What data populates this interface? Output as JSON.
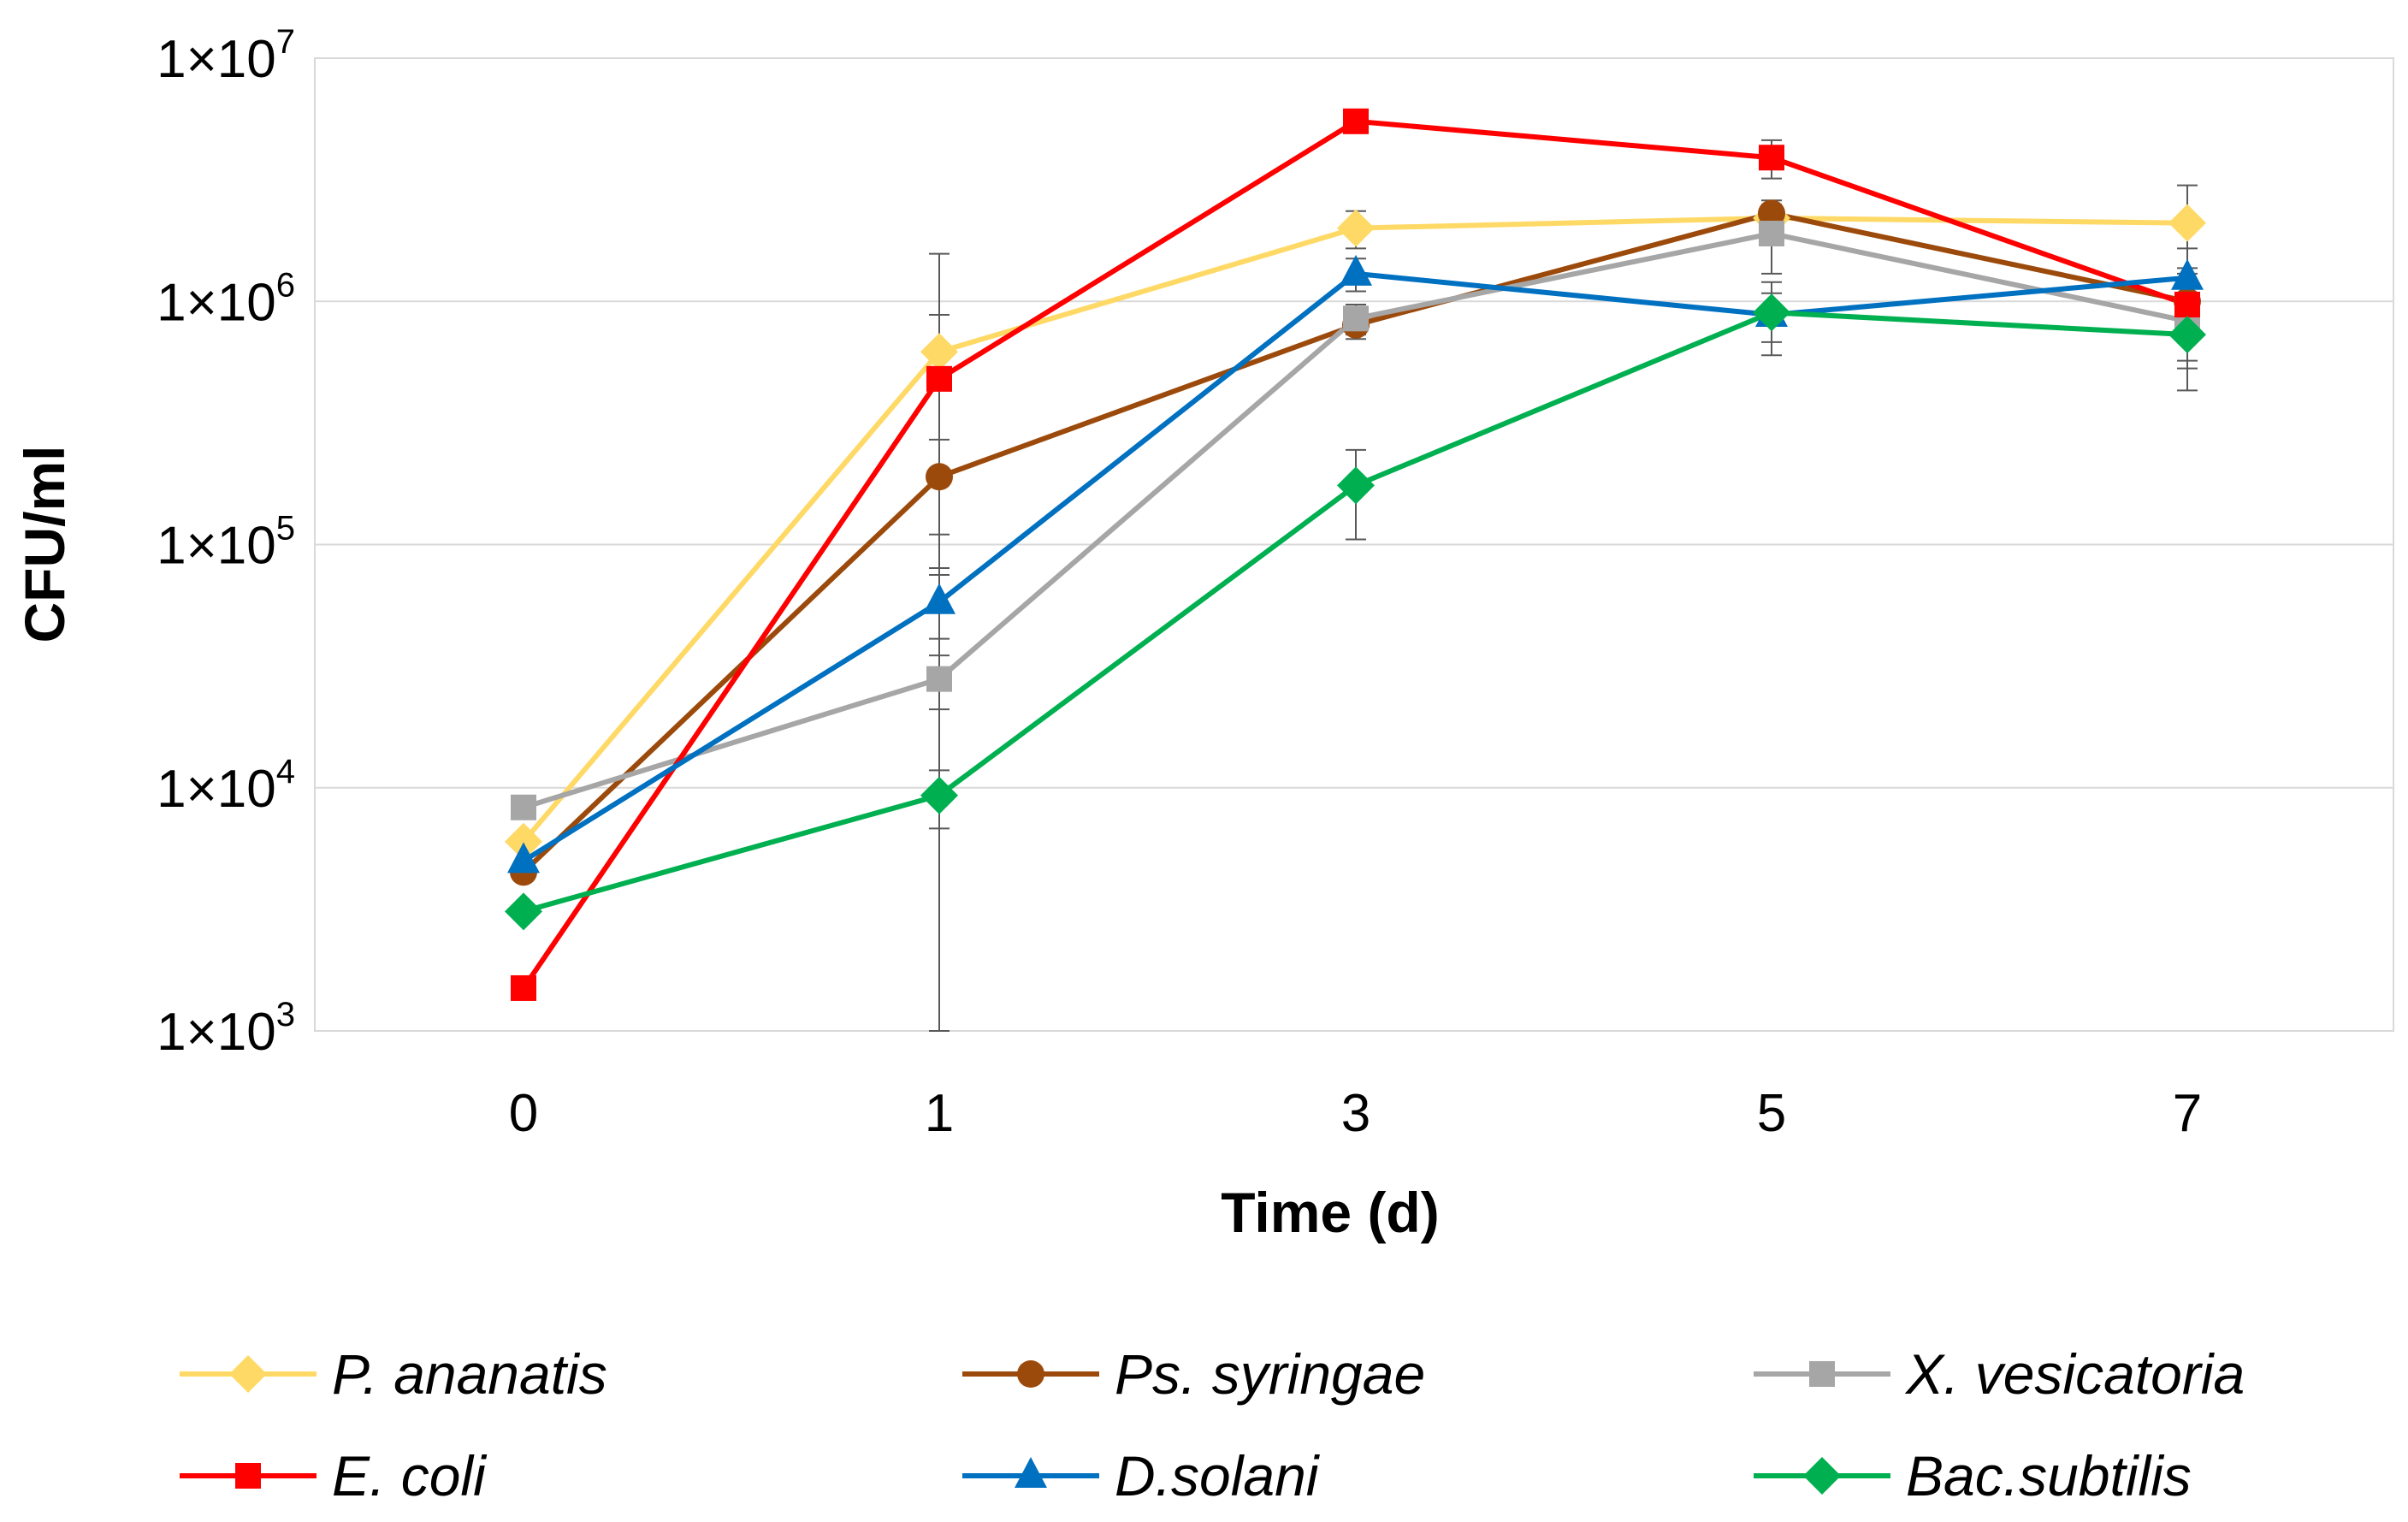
{
  "chart_data": {
    "type": "line",
    "title": "",
    "xlabel": "Time (d)",
    "ylabel": "CFU/ml",
    "yscale": "log",
    "ylim": [
      1000,
      10000000
    ],
    "y_ticks": [
      {
        "base": "1×10",
        "exp": "3",
        "value": 1000
      },
      {
        "base": "1×10",
        "exp": "4",
        "value": 10000
      },
      {
        "base": "1×10",
        "exp": "5",
        "value": 100000
      },
      {
        "base": "1×10",
        "exp": "6",
        "value": 1000000
      },
      {
        "base": "1×10",
        "exp": "7",
        "value": 10000000
      }
    ],
    "categories": [
      "0",
      "1",
      "3",
      "5",
      "7"
    ],
    "grid": true,
    "legend_position": "bottom",
    "series": [
      {
        "name": "P. ananatis",
        "color": "#FFD966",
        "marker": "diamond",
        "values": [
          6000,
          620000,
          2000000,
          2200000,
          2100000
        ],
        "errors": [
          0,
          950000,
          350000,
          0,
          900000
        ]
      },
      {
        "name": "Ps. syringae",
        "color": "#9C4A0C",
        "marker": "circle",
        "values": [
          4500,
          190000,
          800000,
          2300000,
          1000000
        ],
        "errors": [
          0,
          80000,
          100000,
          300000,
          300000
        ]
      },
      {
        "name": "X. vesicatoria",
        "color": "#A6A6A6",
        "marker": "square",
        "values": [
          8300,
          28000,
          850000,
          1900000,
          830000
        ],
        "errors": [
          0,
          7000,
          120000,
          600000,
          300000
        ]
      },
      {
        "name": "E. coli",
        "color": "#FF0000",
        "marker": "square",
        "values": [
          1500,
          480000,
          5500000,
          3900000,
          970000
        ],
        "errors": [
          0,
          400000,
          400000,
          700000,
          400000
        ]
      },
      {
        "name": "D.solani",
        "color": "#0070C0",
        "marker": "triangle",
        "values": [
          5000,
          58000,
          1300000,
          880000,
          1250000
        ],
        "errors": [
          0,
          17000,
          200000,
          200000,
          400000
        ]
      },
      {
        "name": "Bac.subtilis",
        "color": "#00B050",
        "marker": "diamond",
        "values": [
          3100,
          9300,
          175000,
          900000,
          730000
        ],
        "errors": [
          0,
          2500,
          70000,
          300000,
          300000
        ]
      }
    ]
  }
}
